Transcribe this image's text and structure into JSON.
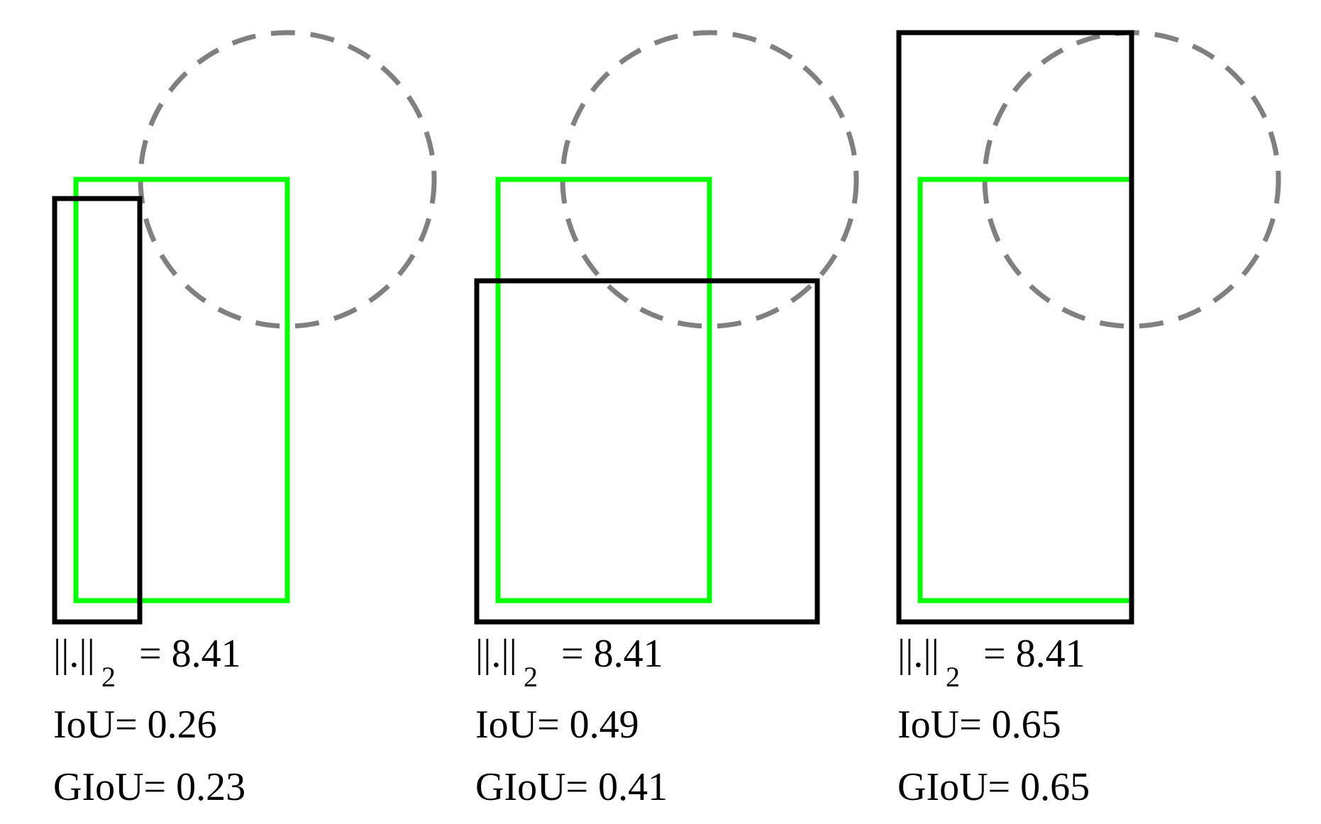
{
  "colors": {
    "ground_truth_box": "#00ff00",
    "predicted_box": "#000000",
    "circle": "#808080",
    "text": "#000000",
    "background": "#ffffff"
  },
  "panels": [
    {
      "norm_symbol": "||.||",
      "norm_subscript": "2",
      "norm_value": "= 8.41",
      "iou_text": "IoU= 0.26",
      "giou_text": "GIoU= 0.23"
    },
    {
      "norm_symbol": "||.||",
      "norm_subscript": "2",
      "norm_value": "= 8.41",
      "iou_text": "IoU= 0.49",
      "giou_text": "GIoU= 0.41"
    },
    {
      "norm_symbol": "||.||",
      "norm_subscript": "2",
      "norm_value": "= 8.41",
      "iou_text": "IoU= 0.65",
      "giou_text": "GIoU= 0.65"
    }
  ]
}
